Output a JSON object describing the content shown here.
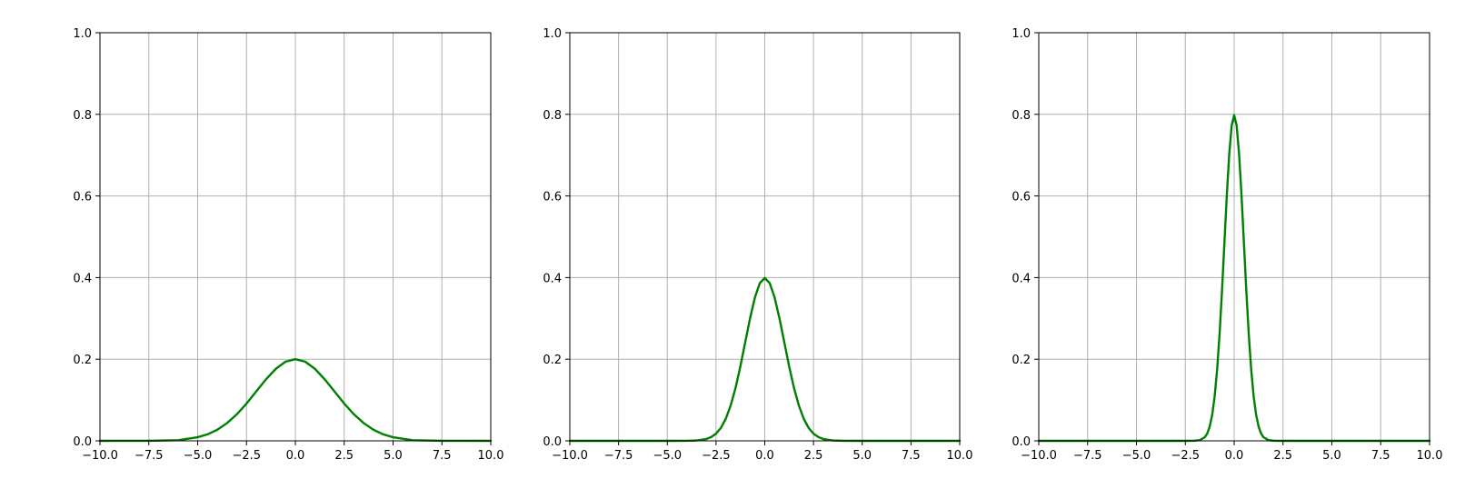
{
  "chart_data": [
    {
      "type": "line",
      "xlim": [
        -10,
        10
      ],
      "ylim": [
        0,
        1
      ],
      "xticks": [
        "−10.0",
        "−7.5",
        "−5.0",
        "−2.5",
        "0.0",
        "2.5",
        "5.0",
        "7.5",
        "10.0"
      ],
      "yticks": [
        "0.0",
        "0.2",
        "0.4",
        "0.6",
        "0.8",
        "1.0"
      ],
      "grid": true,
      "series": [
        {
          "color": "#008000",
          "x": [
            -10,
            -7.5,
            -6,
            -5,
            -4.5,
            -4,
            -3.5,
            -3,
            -2.5,
            -2,
            -1.5,
            -1,
            -0.5,
            0,
            0.5,
            1,
            1.5,
            2,
            2.5,
            3,
            3.5,
            4,
            4.5,
            5,
            6,
            7.5,
            10
          ],
          "y": [
            0.0,
            0.0002,
            0.0016,
            0.0088,
            0.0158,
            0.027,
            0.0433,
            0.0648,
            0.0913,
            0.121,
            0.1508,
            0.1765,
            0.194,
            0.2,
            0.194,
            0.1765,
            0.1508,
            0.121,
            0.0913,
            0.0648,
            0.0433,
            0.027,
            0.0158,
            0.0088,
            0.0016,
            0.0002,
            0.0
          ]
        }
      ]
    },
    {
      "type": "line",
      "xlim": [
        -10,
        10
      ],
      "ylim": [
        0,
        1
      ],
      "xticks": [
        "−10.0",
        "−7.5",
        "−5.0",
        "−2.5",
        "0.0",
        "2.5",
        "5.0",
        "7.5",
        "10.0"
      ],
      "yticks": [
        "0.0",
        "0.2",
        "0.4",
        "0.6",
        "0.8",
        "1.0"
      ],
      "grid": true,
      "series": [
        {
          "color": "#008000",
          "x": [
            -10,
            -5,
            -4,
            -3.5,
            -3,
            -2.75,
            -2.5,
            -2.25,
            -2,
            -1.75,
            -1.5,
            -1.25,
            -1,
            -0.75,
            -0.5,
            -0.25,
            0,
            0.25,
            0.5,
            0.75,
            1,
            1.25,
            1.5,
            1.75,
            2,
            2.25,
            2.5,
            2.75,
            3,
            3.5,
            4,
            5,
            10
          ],
          "y": [
            0.0,
            0.0,
            0.0001,
            0.0009,
            0.0044,
            0.0091,
            0.0175,
            0.0317,
            0.054,
            0.0863,
            0.1295,
            0.1826,
            0.242,
            0.3011,
            0.3521,
            0.3867,
            0.3989,
            0.3867,
            0.3521,
            0.3011,
            0.242,
            0.1826,
            0.1295,
            0.0863,
            0.054,
            0.0317,
            0.0175,
            0.0091,
            0.0044,
            0.0009,
            0.0001,
            0.0,
            0.0
          ]
        }
      ]
    },
    {
      "type": "line",
      "xlim": [
        -10,
        10
      ],
      "ylim": [
        0,
        1
      ],
      "xticks": [
        "−10.0",
        "−7.5",
        "−5.0",
        "−2.5",
        "0.0",
        "2.5",
        "5.0",
        "7.5",
        "10.0"
      ],
      "yticks": [
        "0.0",
        "0.2",
        "0.4",
        "0.6",
        "0.8",
        "1.0"
      ],
      "grid": true,
      "series": [
        {
          "color": "#008000",
          "x": [
            -10,
            -3,
            -2,
            -1.75,
            -1.5,
            -1.375,
            -1.25,
            -1.125,
            -1,
            -0.875,
            -0.75,
            -0.625,
            -0.5,
            -0.375,
            -0.25,
            -0.125,
            0,
            0.125,
            0.25,
            0.375,
            0.5,
            0.625,
            0.75,
            0.875,
            1,
            1.125,
            1.25,
            1.375,
            1.5,
            1.75,
            2,
            3,
            10
          ],
          "y": [
            0.0,
            0.0,
            0.0003,
            0.0018,
            0.0089,
            0.0182,
            0.035,
            0.0634,
            0.108,
            0.1726,
            0.259,
            0.3652,
            0.4839,
            0.6022,
            0.7041,
            0.7733,
            0.7979,
            0.7733,
            0.7041,
            0.6022,
            0.4839,
            0.3652,
            0.259,
            0.1726,
            0.108,
            0.0634,
            0.035,
            0.0182,
            0.0089,
            0.0018,
            0.0003,
            0.0,
            0.0
          ]
        }
      ]
    }
  ]
}
